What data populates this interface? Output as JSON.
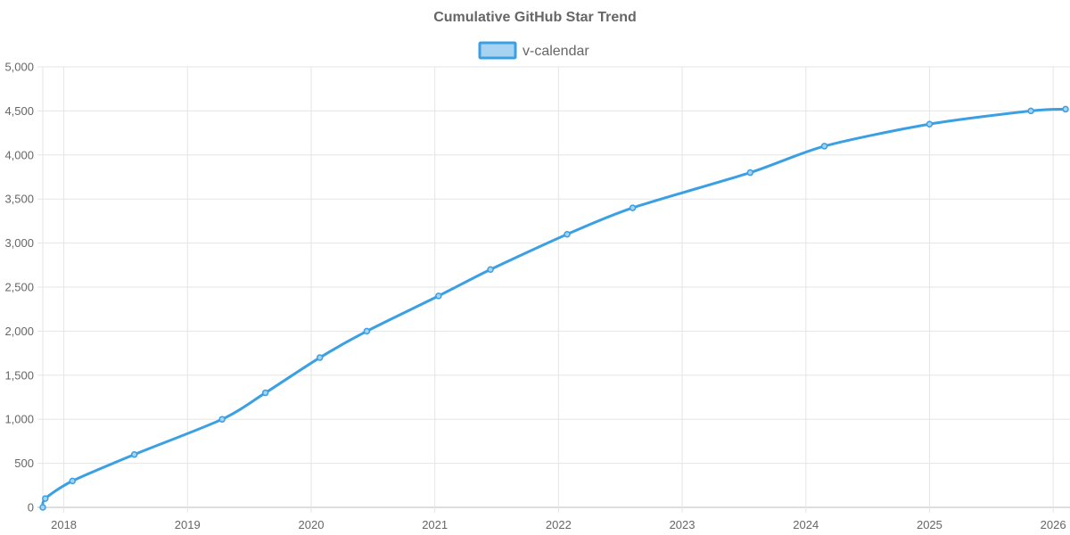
{
  "chart_data": {
    "type": "line",
    "title": "Cumulative GitHub Star Trend",
    "xlabel": "",
    "ylabel": "",
    "x_tick_labels": [
      "2018",
      "2019",
      "2020",
      "2021",
      "2022",
      "2023",
      "2024",
      "2025",
      "2026"
    ],
    "xlim": [
      2017.83,
      2026.1
    ],
    "ylim": [
      0,
      5000
    ],
    "y_tick_values": [
      0,
      500,
      1000,
      1500,
      2000,
      2500,
      3000,
      3500,
      4000,
      4500,
      5000
    ],
    "grid": true,
    "legend_position": "top-center",
    "series": [
      {
        "name": "v-calendar",
        "color": "#3aa0e3",
        "fill_color": "#a6d3f2",
        "x": [
          2017.83,
          2017.85,
          2018.07,
          2018.57,
          2019.28,
          2019.63,
          2020.07,
          2020.45,
          2021.03,
          2021.45,
          2022.07,
          2022.6,
          2023.55,
          2024.15,
          2025.0,
          2025.82,
          2026.1
        ],
        "y": [
          0,
          100,
          300,
          600,
          1000,
          1300,
          1700,
          2000,
          2400,
          2700,
          3100,
          3400,
          3800,
          4100,
          4350,
          4500,
          4520
        ]
      }
    ]
  }
}
